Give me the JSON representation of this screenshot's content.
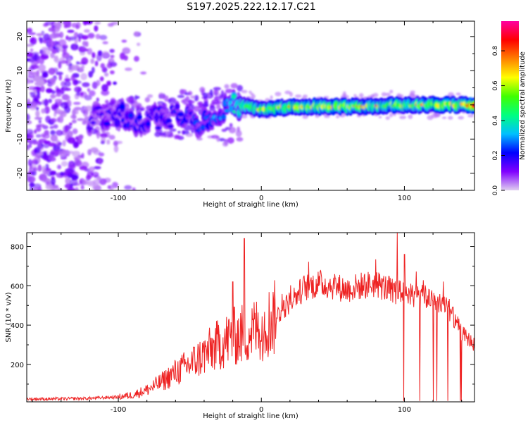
{
  "title": "S197.2025.222.12.17.C21",
  "chart_data": [
    {
      "type": "heatmap",
      "xlabel": "Height of straight line (km)",
      "ylabel": "Frequency (Hz)",
      "xlim": [
        -164,
        149
      ],
      "ylim": [
        -25,
        24.5
      ],
      "xticks": [
        -100,
        0,
        100
      ],
      "yticks": [
        -20,
        -10,
        0,
        10,
        20
      ],
      "colorbar": {
        "label": "Normalized spectral amplitude",
        "ticks": [
          "0.0",
          "0.2",
          "0.4",
          "0.6",
          "0.8"
        ],
        "tick_values": [
          0.0,
          0.2,
          0.4,
          0.6,
          0.8
        ],
        "range": [
          0,
          0.97
        ],
        "stops": [
          "#e0d0f0",
          "#8000ff",
          "#0000ff",
          "#00c0ff",
          "#00ff80",
          "#40ff00",
          "#ffff00",
          "#ff8000",
          "#ff0000",
          "#ff00a0"
        ]
      },
      "ridge": {
        "description_x": [
          -120,
          -100,
          -80,
          -60,
          -40,
          -25,
          -15,
          0,
          20,
          60,
          100,
          140,
          149
        ],
        "frequency": [
          -4,
          -3,
          -5,
          -3,
          -5,
          -1,
          0,
          -1.5,
          -0.5,
          -0.5,
          0,
          0,
          0
        ],
        "amplitude": [
          0.15,
          0.2,
          0.2,
          0.2,
          0.25,
          0.3,
          0.45,
          0.55,
          0.6,
          0.6,
          0.55,
          0.6,
          0.8
        ]
      }
    },
    {
      "type": "line",
      "xlabel": "Height of straight line (km)",
      "ylabel": "SNR (10 * v/v)",
      "xlim": [
        -164,
        149
      ],
      "ylim": [
        10,
        870
      ],
      "xticks": [
        -100,
        0,
        100
      ],
      "yticks": [
        200,
        400,
        600,
        800
      ],
      "series": [
        {
          "name": "SNR",
          "color": "#ee2222",
          "x": [
            -164,
            -140,
            -120,
            -100,
            -90,
            -80,
            -70,
            -60,
            -50,
            -40,
            -30,
            -20,
            -10,
            0,
            10,
            20,
            30,
            40,
            50,
            60,
            70,
            80,
            90,
            100,
            110,
            120,
            130,
            140,
            149
          ],
          "y": [
            25,
            25,
            28,
            35,
            45,
            70,
            110,
            160,
            200,
            250,
            300,
            340,
            360,
            390,
            440,
            520,
            590,
            610,
            600,
            580,
            600,
            610,
            580,
            560,
            540,
            540,
            500,
            360,
            300
          ],
          "spikes": [
            [
              -12,
              840
            ],
            [
              95,
              870
            ],
            [
              -20,
              620
            ],
            [
              100,
              760
            ]
          ]
        }
      ]
    }
  ]
}
